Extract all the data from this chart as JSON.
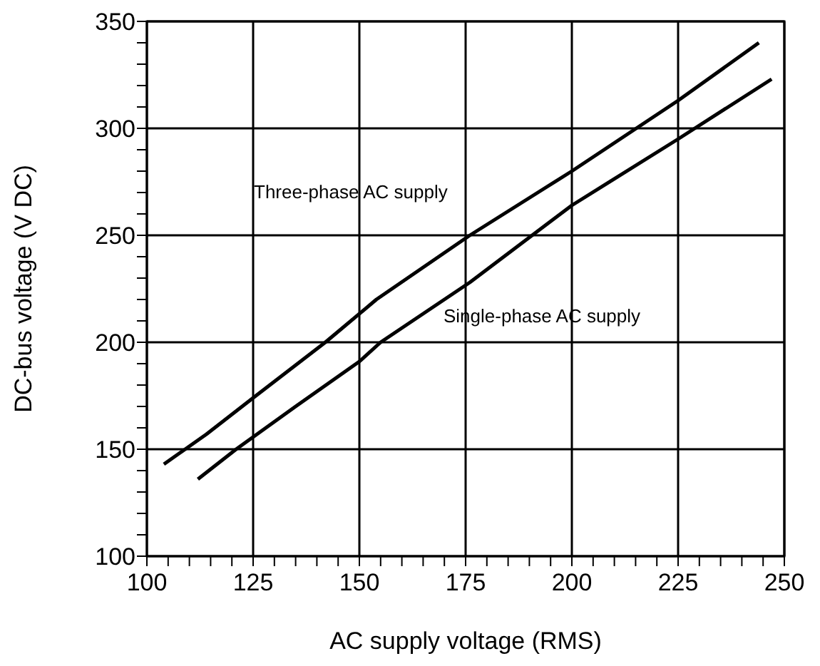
{
  "chart_data": {
    "type": "line",
    "xlabel": "AC supply voltage (RMS)",
    "ylabel": "DC-bus voltage (V DC)",
    "xlim": [
      100,
      250
    ],
    "ylim": [
      100,
      350
    ],
    "xticks": [
      100,
      {
        "value": 105,
        "label": null
      },
      {
        "value": 110,
        "label": null
      },
      {
        "value": 115,
        "label": null
      },
      {
        "value": 120,
        "label": null
      },
      125,
      {
        "value": 130,
        "label": null
      },
      {
        "value": 135,
        "label": null
      },
      {
        "value": 140,
        "label": null
      },
      {
        "value": 145,
        "label": null
      },
      150,
      {
        "value": 155,
        "label": null
      },
      {
        "value": 160,
        "label": null
      },
      {
        "value": 165,
        "label": null
      },
      {
        "value": 170,
        "label": null
      },
      175,
      {
        "value": 180,
        "label": null
      },
      {
        "value": 185,
        "label": null
      },
      {
        "value": 190,
        "label": null
      },
      {
        "value": 195,
        "label": null
      },
      200,
      {
        "value": 205,
        "label": null
      },
      {
        "value": 210,
        "label": null
      },
      {
        "value": 215,
        "label": null
      },
      {
        "value": 220,
        "label": null
      },
      225,
      {
        "value": 230,
        "label": null
      },
      {
        "value": 235,
        "label": null
      },
      {
        "value": 240,
        "label": null
      },
      {
        "value": 245,
        "label": null
      },
      250
    ],
    "yticks": [
      100,
      {
        "value": 110,
        "label": null
      },
      {
        "value": 120,
        "label": null
      },
      {
        "value": 130,
        "label": null
      },
      {
        "value": 140,
        "label": null
      },
      150,
      {
        "value": 160,
        "label": null
      },
      {
        "value": 170,
        "label": null
      },
      {
        "value": 180,
        "label": null
      },
      {
        "value": 190,
        "label": null
      },
      200,
      {
        "value": 210,
        "label": null
      },
      {
        "value": 220,
        "label": null
      },
      {
        "value": 230,
        "label": null
      },
      {
        "value": 240,
        "label": null
      },
      250,
      {
        "value": 260,
        "label": null
      },
      {
        "value": 270,
        "label": null
      },
      {
        "value": 280,
        "label": null
      },
      {
        "value": 290,
        "label": null
      },
      300,
      {
        "value": 310,
        "label": null
      },
      {
        "value": 320,
        "label": null
      },
      {
        "value": 330,
        "label": null
      },
      {
        "value": 340,
        "label": null
      },
      350
    ],
    "grid": true,
    "marker": "none",
    "line_style": "solid",
    "series": [
      {
        "name": "Three-phase AC supply",
        "color": "#000000",
        "x": [
          104,
          114,
          125,
          142,
          154,
          176,
          200,
          225,
          244
        ],
        "values": [
          143,
          157,
          174,
          200,
          220,
          250,
          280,
          313,
          340
        ]
      },
      {
        "name": "Single-phase AC supply",
        "color": "#000000",
        "x": [
          112,
          121,
          135,
          150,
          155,
          176,
          200,
          225,
          247
        ],
        "values": [
          136,
          150,
          170,
          191,
          200,
          228,
          264,
          295,
          323
        ]
      }
    ]
  }
}
